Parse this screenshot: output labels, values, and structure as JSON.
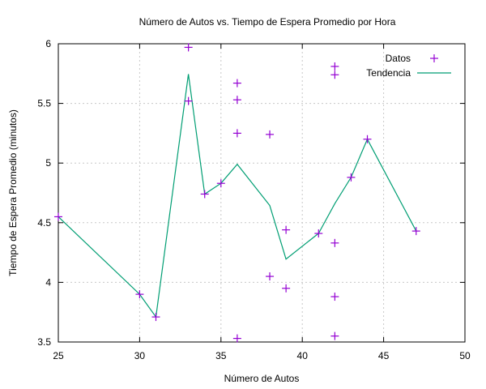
{
  "chart_data": {
    "type": "scatter",
    "title": "Número de Autos vs. Tiempo de Espera Promedio por Hora",
    "xlabel": "Número de Autos",
    "ylabel": "Tiempo de Espera Promedio (minutos)",
    "xlim": [
      25,
      50
    ],
    "ylim": [
      3.5,
      6
    ],
    "xticks": [
      25,
      30,
      35,
      40,
      45,
      50
    ],
    "yticks": [
      3.5,
      4,
      4.5,
      5,
      5.5,
      6
    ],
    "grid": true,
    "legend_position": "top-right",
    "series": [
      {
        "name": "Datos",
        "kind": "points",
        "marker": "plus",
        "color": "#9400d3",
        "x": [
          25,
          30,
          31,
          33,
          33,
          34,
          35,
          36,
          36,
          36,
          36,
          38,
          38,
          39,
          39,
          41,
          42,
          42,
          42,
          42,
          42,
          43,
          44,
          47
        ],
        "y": [
          4.55,
          3.9,
          3.71,
          5.97,
          5.52,
          4.74,
          4.83,
          5.67,
          5.53,
          5.25,
          3.53,
          5.24,
          4.05,
          4.44,
          3.95,
          4.41,
          5.81,
          5.74,
          4.33,
          3.88,
          3.55,
          4.88,
          5.2,
          4.43
        ]
      },
      {
        "name": "Tendencia",
        "kind": "line",
        "color": "#009e73",
        "x": [
          25,
          30,
          31,
          33,
          34,
          35,
          36,
          38,
          39,
          41,
          42,
          43,
          44,
          47
        ],
        "y": [
          4.55,
          3.9,
          3.71,
          5.745,
          4.74,
          4.83,
          4.99,
          4.645,
          4.195,
          4.41,
          4.66,
          4.88,
          5.2,
          4.43
        ]
      }
    ]
  }
}
